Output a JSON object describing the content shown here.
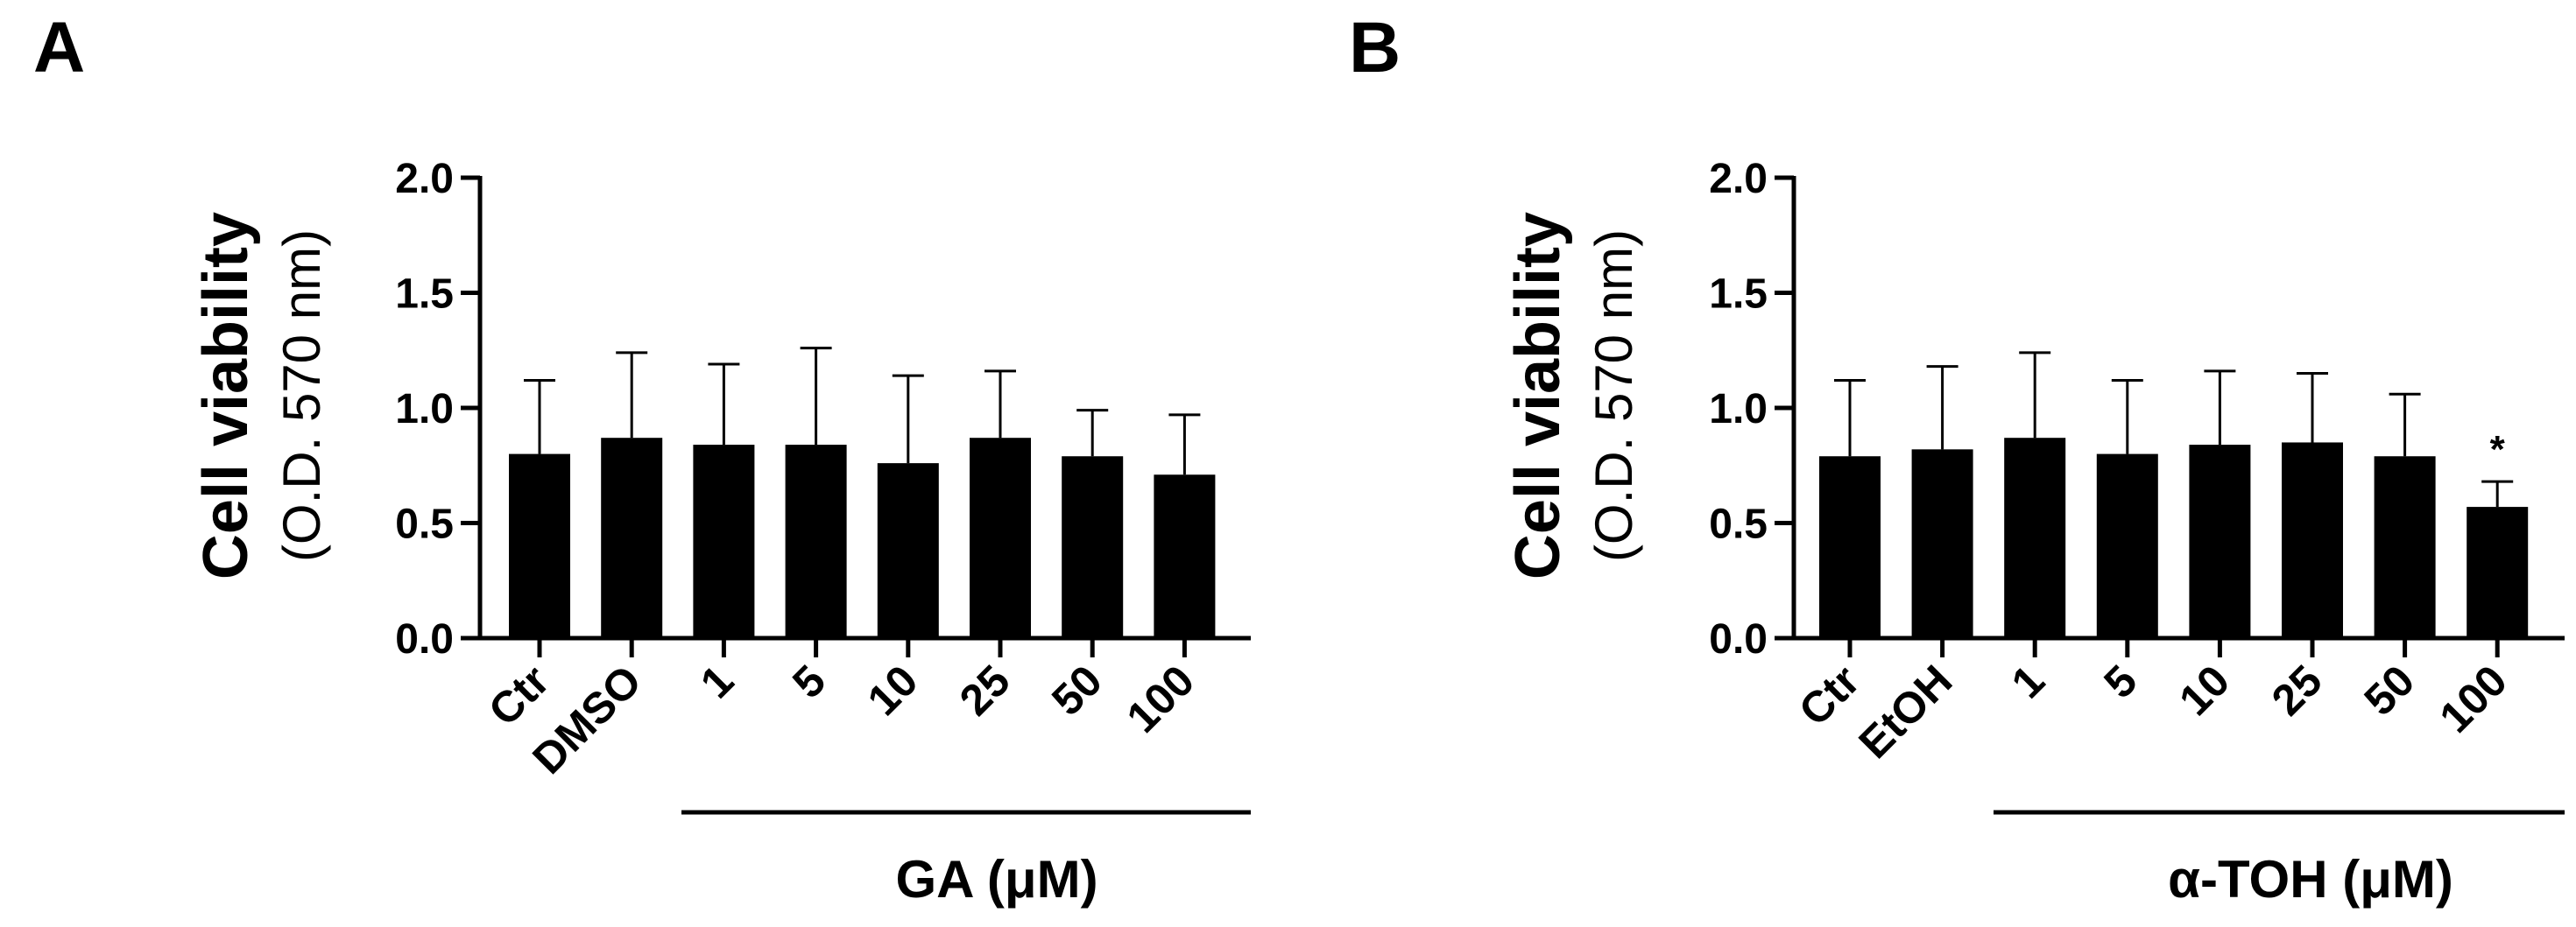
{
  "chart_data": [
    {
      "type": "bar",
      "panel_label": "A",
      "title": "",
      "ylabel": "Cell viability",
      "ylabel_sub": "(O.D. 570 nm)",
      "ylim": [
        0,
        2.0
      ],
      "yticks": [
        "0.0",
        "0.5",
        "1.0",
        "1.5",
        "2.0"
      ],
      "categories": [
        "Ctr",
        "DMSO",
        "1",
        "5",
        "10",
        "25",
        "50",
        "100"
      ],
      "values": [
        0.8,
        0.87,
        0.84,
        0.84,
        0.76,
        0.87,
        0.79,
        0.71
      ],
      "errors": [
        0.32,
        0.37,
        0.35,
        0.42,
        0.38,
        0.29,
        0.2,
        0.26
      ],
      "significance": [
        "",
        "",
        "",
        "",
        "",
        "",
        "",
        ""
      ],
      "group_label": "GA (μM)",
      "group_start": 2,
      "group_end": 7
    },
    {
      "type": "bar",
      "panel_label": "B",
      "title": "",
      "ylabel": "Cell viability",
      "ylabel_sub": "(O.D. 570 nm)",
      "ylim": [
        0,
        2.0
      ],
      "yticks": [
        "0.0",
        "0.5",
        "1.0",
        "1.5",
        "2.0"
      ],
      "categories": [
        "Ctr",
        "EtOH",
        "1",
        "5",
        "10",
        "25",
        "50",
        "100"
      ],
      "values": [
        0.79,
        0.82,
        0.87,
        0.8,
        0.84,
        0.85,
        0.79,
        0.57
      ],
      "errors": [
        0.33,
        0.36,
        0.37,
        0.32,
        0.32,
        0.3,
        0.27,
        0.11
      ],
      "significance": [
        "",
        "",
        "",
        "",
        "",
        "",
        "",
        "*"
      ],
      "group_label": "α-TOH (μM)",
      "group_start": 2,
      "group_end": 7
    }
  ]
}
